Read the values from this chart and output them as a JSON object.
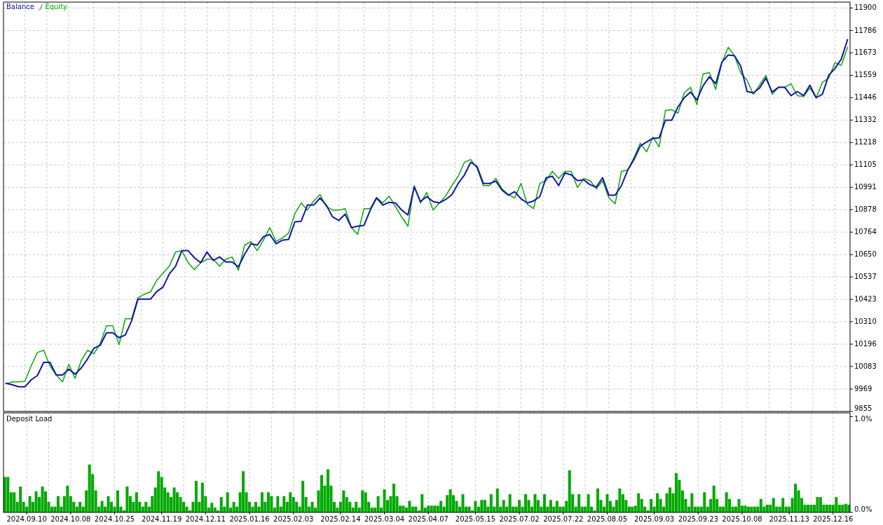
{
  "chart_data": [
    {
      "type": "line",
      "legend": "top left",
      "grid": true,
      "tick_labels": "y",
      "ylim": [
        9855,
        11930
      ],
      "categories": [
        null,
        null,
        null,
        "2024.09.10",
        null,
        null,
        null,
        null,
        null,
        null,
        "2024.10.08",
        null,
        null,
        null,
        null,
        null,
        null,
        null,
        "2024.10.25",
        null,
        null,
        null,
        null,
        null,
        null,
        "2024.11.19",
        null,
        null,
        null,
        null,
        null,
        null,
        "2024.12.11",
        null,
        null,
        null,
        null,
        null,
        null,
        "2025.01.16",
        null,
        null,
        null,
        null,
        null,
        null,
        "2025.02.03",
        null,
        null,
        null,
        null,
        null,
        null,
        "2025.02.14",
        null,
        null,
        null,
        null,
        null,
        null,
        null,
        "2025.03.04",
        null,
        null,
        null,
        null,
        null,
        null,
        "2025.04.07",
        null,
        null,
        null,
        null,
        null,
        null,
        "2025.05.15",
        null,
        null,
        null,
        null,
        null,
        null,
        "2025.07.02",
        null,
        null,
        null,
        null,
        null,
        null,
        "2025.07.22",
        null,
        null,
        null,
        null,
        null,
        null,
        "2025.08.05",
        null,
        null,
        null,
        null,
        null,
        null,
        "2025.09.03",
        null,
        null,
        null,
        null,
        null,
        null,
        "2025.09.23",
        null,
        null,
        null,
        null,
        null,
        null,
        null,
        "2025.10.08",
        null,
        null,
        null,
        null,
        null,
        null,
        "2025.11.13",
        null,
        null,
        null,
        null,
        null,
        null,
        "2025.12.16",
        null,
        null
      ],
      "yticks": [
        9855,
        9969,
        10083,
        10196,
        10310,
        10423,
        10537,
        10650,
        10764,
        10878,
        10991,
        11105,
        11218,
        11332,
        11446,
        11559,
        11673,
        11786,
        11900
      ],
      "series": [
        {
          "name": "Balance",
          "color": "#1414aa",
          "values": [
            9998,
            9990,
            9980,
            9980,
            10015,
            10037,
            10104,
            10104,
            10040,
            10040,
            10069,
            10044,
            10076,
            10122,
            10175,
            10190,
            10254,
            10254,
            10229,
            10243,
            10314,
            10424,
            10424,
            10424,
            10463,
            10485,
            10552,
            10591,
            10670,
            10670,
            10634,
            10609,
            10663,
            10620,
            10638,
            10613,
            10613,
            10588,
            10652,
            10705,
            10698,
            10741,
            10752,
            10705,
            10723,
            10727,
            10816,
            10819,
            10901,
            10901,
            10937,
            10901,
            10841,
            10823,
            10855,
            10787,
            10794,
            10798,
            10876,
            10937,
            10901,
            10915,
            10912,
            10876,
            10851,
            10993,
            10919,
            10944,
            10919,
            10912,
            10929,
            10954,
            11011,
            11054,
            11118,
            11097,
            11011,
            11011,
            11022,
            10976,
            10951,
            10969,
            10933,
            10912,
            10922,
            10944,
            11040,
            11047,
            11000,
            11064,
            11054,
            11025,
            11029,
            11004,
            10993,
            11040,
            10951,
            10951,
            11000,
            11079,
            11132,
            11200,
            11221,
            11239,
            11242,
            11331,
            11331,
            11399,
            11445,
            11474,
            11434,
            11506,
            11552,
            11516,
            11626,
            11662,
            11658,
            11605,
            11477,
            11470,
            11495,
            11545,
            11474,
            11498,
            11498,
            11456,
            11477,
            11456,
            11509,
            11445,
            11463,
            11559,
            11594,
            11641,
            11740
          ]
        },
        {
          "name": "Equity",
          "color": "#0aa80a",
          "values": [
            9994,
            10005,
            10005,
            10008,
            10086,
            10154,
            10165,
            10086,
            10040,
            10005,
            10094,
            10022,
            10115,
            10165,
            10147,
            10200,
            10289,
            10289,
            10193,
            10325,
            10325,
            10431,
            10449,
            10460,
            10520,
            10556,
            10591,
            10663,
            10670,
            10609,
            10574,
            10609,
            10627,
            10627,
            10591,
            10627,
            10638,
            10570,
            10698,
            10716,
            10670,
            10723,
            10787,
            10716,
            10734,
            10759,
            10858,
            10912,
            10876,
            10922,
            10954,
            10894,
            10876,
            10876,
            10883,
            10787,
            10752,
            10883,
            10883,
            10940,
            10912,
            10947,
            10894,
            10841,
            10794,
            11000,
            10912,
            10965,
            10876,
            10912,
            10947,
            11000,
            11047,
            11118,
            11132,
            11089,
            11000,
            11000,
            11036,
            10983,
            10954,
            10937,
            11011,
            10905,
            10883,
            11011,
            11025,
            11072,
            11036,
            11072,
            11072,
            10990,
            11036,
            11025,
            10983,
            11025,
            10937,
            10908,
            11072,
            11079,
            11143,
            11214,
            11171,
            11246,
            11196,
            11381,
            11385,
            11367,
            11470,
            11498,
            11410,
            11566,
            11573,
            11488,
            11623,
            11701,
            11658,
            11570,
            11534,
            11463,
            11509,
            11559,
            11463,
            11498,
            11498,
            11516,
            11456,
            11452,
            11495,
            11445,
            11523,
            11545,
            11623,
            11609,
            11701
          ]
        }
      ]
    },
    {
      "type": "bar",
      "title": "Deposit Load",
      "grid": "x",
      "color": "#00aa00",
      "ylim": [
        0,
        1.04
      ],
      "categories": [
        null,
        null,
        null,
        null,
        null,
        null,
        null,
        "2024.09.10",
        null,
        null,
        null,
        null,
        null,
        null,
        null,
        null,
        null,
        null,
        null,
        null,
        null,
        "2024.10.08",
        null,
        null,
        null,
        null,
        null,
        null,
        null,
        null,
        null,
        null,
        null,
        null,
        null,
        "2024.10.25",
        null,
        null,
        null,
        null,
        null,
        null,
        null,
        null,
        null,
        null,
        null,
        null,
        null,
        null,
        "2024.11.19",
        null,
        null,
        null,
        null,
        null,
        null,
        null,
        null,
        null,
        null,
        null,
        null,
        null,
        "2024.12.11",
        null,
        null,
        null,
        null,
        null,
        null,
        null,
        null,
        null,
        null,
        null,
        null,
        null,
        "2025.01.16",
        null,
        null,
        null,
        null,
        null,
        null,
        null,
        null,
        null,
        null,
        null,
        null,
        null,
        "2025.02.03",
        null,
        null,
        null,
        null,
        null,
        null,
        null,
        null,
        null,
        null,
        null,
        null,
        null,
        null,
        "2025.02.14",
        null,
        null,
        null,
        null,
        null,
        null,
        null,
        null,
        null,
        null,
        null,
        null,
        null,
        "2025.03.04",
        null,
        null,
        null,
        null,
        null,
        null,
        null,
        null,
        null,
        null,
        null,
        null,
        null,
        "2025.04.07",
        null,
        null,
        null,
        null,
        null,
        null,
        null,
        null,
        null,
        null,
        null,
        null,
        null,
        null,
        "2025.05.15",
        null,
        null,
        null,
        null,
        null,
        null,
        null,
        null,
        null,
        null,
        null,
        null,
        null,
        "2025.07.02",
        null,
        null,
        null,
        null,
        null,
        null,
        null,
        null,
        null,
        null,
        null,
        null,
        null,
        "2025.07.22",
        null,
        null,
        null,
        null,
        null,
        null,
        null,
        null,
        null,
        null,
        null,
        null,
        null,
        "2025.08.05",
        null,
        null,
        null,
        null,
        null,
        null,
        null,
        null,
        null,
        null,
        null,
        null,
        null,
        null,
        "2025.09.03",
        null,
        null,
        null,
        null,
        null,
        null,
        null,
        null,
        null,
        null,
        null,
        null,
        null,
        "2025.09.23",
        null,
        null,
        null,
        null,
        null,
        null,
        null,
        null,
        null,
        null,
        null,
        null,
        null,
        "2025.10.08",
        null,
        null,
        null,
        null,
        null,
        null,
        null,
        null,
        null,
        null,
        null,
        null,
        null,
        null,
        "2025.11.13",
        null,
        null,
        null,
        null,
        null,
        null,
        null,
        null,
        null,
        null,
        null,
        null,
        null,
        "2025.12.16",
        null,
        null,
        null,
        null,
        null
      ],
      "yticks": [
        {
          "value": 0,
          "label": "0.0%"
        },
        {
          "value": 1,
          "label": "1.0%"
        }
      ],
      "values": [
        0.37,
        0.37,
        0.21,
        0.21,
        0.11,
        0.27,
        0.11,
        0.06,
        0.17,
        0.11,
        0.22,
        0.16,
        0.27,
        0.22,
        0.11,
        0.06,
        0.06,
        0.17,
        0.06,
        0.17,
        0.28,
        0.17,
        0.11,
        0.06,
        0.11,
        0.06,
        0.23,
        0.5,
        0.4,
        0.23,
        0.06,
        0.12,
        0.06,
        0.17,
        0.11,
        0.06,
        0.23,
        0.06,
        0.02,
        0.27,
        0.17,
        0.11,
        0.21,
        0.11,
        0.06,
        0.11,
        0.06,
        0.17,
        0.26,
        0.43,
        0.37,
        0.26,
        0.21,
        0.16,
        0.26,
        0.21,
        0.16,
        0.11,
        0.06,
        0.02,
        0.11,
        0.33,
        0.11,
        0.31,
        0.17,
        0.05,
        0.1,
        0.05,
        0.02,
        0.16,
        0.06,
        0.21,
        0.05,
        0.11,
        0.06,
        0.21,
        0.43,
        0.21,
        0.11,
        0.06,
        0.11,
        0.06,
        0.21,
        0.11,
        0.21,
        0.17,
        0.05,
        0.17,
        0.06,
        0.17,
        0.11,
        0.21,
        0.16,
        0.11,
        0.06,
        0.33,
        0.16,
        0.06,
        0.11,
        0.05,
        0.23,
        0.39,
        0.28,
        0.45,
        0.28,
        0.11,
        0.05,
        0.11,
        0.23,
        0.16,
        0.11,
        0.05,
        0.11,
        0.05,
        0.23,
        0.21,
        0.11,
        0.05,
        0.05,
        0.17,
        0.05,
        0.24,
        0.13,
        0.17,
        0.3,
        0.17,
        0.07,
        0.07,
        0.05,
        0.12,
        0.06,
        0.06,
        0.02,
        0.19,
        0.05,
        0.07,
        0.07,
        0.07,
        0.07,
        0.12,
        0.06,
        0.18,
        0.24,
        0.18,
        0.12,
        0.06,
        0.19,
        0.06,
        0.06,
        0.02,
        0.12,
        0.06,
        0.13,
        0.13,
        0.06,
        0.19,
        0.06,
        0.25,
        0.06,
        0.13,
        0.06,
        0.19,
        0.06,
        0.06,
        0.13,
        0.06,
        0.19,
        0.13,
        0.06,
        0.19,
        0.13,
        0.06,
        0.19,
        0.06,
        0.13,
        0.06,
        0.12,
        0.06,
        0.06,
        0.12,
        0.44,
        0.19,
        0.06,
        0.19,
        0.06,
        0.06,
        0.19,
        0.06,
        0.02,
        0.25,
        0.13,
        0.06,
        0.19,
        0.12,
        0.06,
        0.13,
        0.25,
        0.19,
        0.13,
        0.06,
        0.06,
        0.07,
        0.2,
        0.14,
        0.06,
        0.02,
        0.14,
        0.06,
        0.2,
        0.14,
        0.06,
        0.2,
        0.26,
        0.2,
        0.41,
        0.34,
        0.23,
        0.14,
        0.06,
        0.2,
        0.06,
        0.06,
        0.06,
        0.21,
        0.06,
        0.14,
        0.28,
        0.14,
        0.06,
        0.06,
        0.21,
        0.14,
        0.06,
        0.06,
        0.14,
        0.07,
        0.07,
        0.06,
        0.06,
        0.06,
        0.06,
        0.14,
        0.06,
        0.08,
        0.08,
        0.15,
        0.06,
        0.06,
        0.15,
        0.06,
        0.06,
        0.15,
        0.3,
        0.23,
        0.15,
        0.08,
        0.08,
        0.08,
        0.08,
        0.16,
        0.16,
        0.08,
        0.08,
        0.08,
        0.08,
        0.16,
        0.08,
        0.08,
        0.09,
        0.08
      ]
    }
  ]
}
